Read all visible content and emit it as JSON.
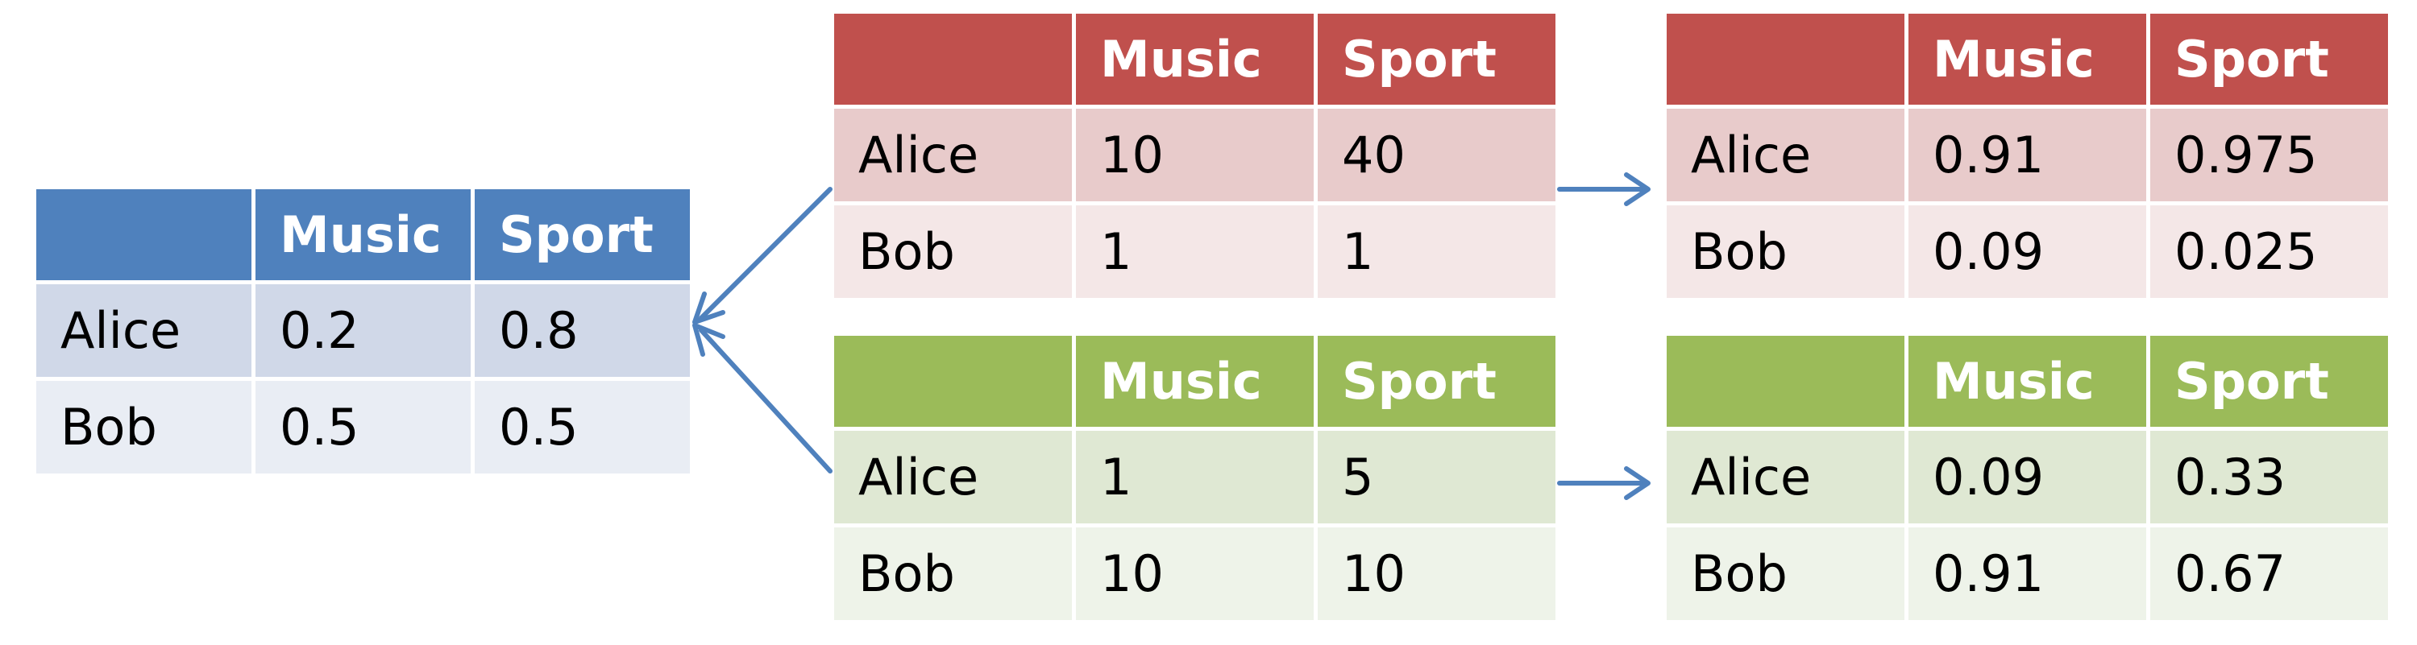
{
  "colors": {
    "blue_header": "#4f81bd",
    "blue_row1": "#d0d8e8",
    "blue_row2": "#e9edf4",
    "red_header": "#c0504d",
    "red_row1": "#e8cbcb",
    "red_row2": "#f4e7e7",
    "green_header": "#9bbb59",
    "green_row1": "#dfe8d3",
    "green_row2": "#eef3e9",
    "arrow": "#4f81bd"
  },
  "tables": {
    "left": {
      "headers": [
        "",
        "Music",
        "Sport"
      ],
      "rows": [
        [
          "Alice",
          "0.2",
          "0.8"
        ],
        [
          "Bob",
          "0.5",
          "0.5"
        ]
      ]
    },
    "red_mid": {
      "headers": [
        "",
        "Music",
        "Sport"
      ],
      "rows": [
        [
          "Alice",
          "10",
          "40"
        ],
        [
          "Bob",
          "1",
          "1"
        ]
      ]
    },
    "green_mid": {
      "headers": [
        "",
        "Music",
        "Sport"
      ],
      "rows": [
        [
          "Alice",
          "1",
          "5"
        ],
        [
          "Bob",
          "10",
          "10"
        ]
      ]
    },
    "red_right": {
      "headers": [
        "",
        "Music",
        "Sport"
      ],
      "rows": [
        [
          "Alice",
          "0.91",
          "0.975"
        ],
        [
          "Bob",
          "0.09",
          "0.025"
        ]
      ]
    },
    "green_right": {
      "headers": [
        "",
        "Music",
        "Sport"
      ],
      "rows": [
        [
          "Alice",
          "0.09",
          "0.33"
        ],
        [
          "Bob",
          "0.91",
          "0.67"
        ]
      ]
    }
  }
}
